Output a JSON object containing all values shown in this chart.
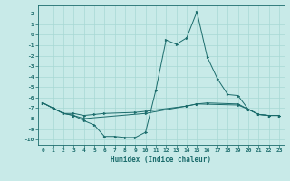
{
  "xlabel": "Humidex (Indice chaleur)",
  "bg_color": "#c8eae8",
  "grid_color": "#a8d8d4",
  "line_color": "#1a6b6b",
  "xlim": [
    -0.5,
    23.5
  ],
  "ylim": [
    -10.5,
    2.8
  ],
  "xticks": [
    0,
    1,
    2,
    3,
    4,
    5,
    6,
    7,
    8,
    9,
    10,
    11,
    12,
    13,
    14,
    15,
    16,
    17,
    18,
    19,
    20,
    21,
    22,
    23
  ],
  "yticks": [
    2,
    1,
    0,
    -1,
    -2,
    -3,
    -4,
    -5,
    -6,
    -7,
    -8,
    -9,
    -10
  ],
  "series1": [
    [
      0,
      -6.5
    ],
    [
      1,
      -7.0
    ],
    [
      2,
      -7.5
    ],
    [
      3,
      -7.7
    ],
    [
      4,
      -8.2
    ],
    [
      5,
      -8.6
    ],
    [
      6,
      -9.7
    ],
    [
      7,
      -9.7
    ],
    [
      8,
      -9.8
    ],
    [
      9,
      -9.8
    ],
    [
      10,
      -9.3
    ],
    [
      11,
      -5.3
    ],
    [
      12,
      -0.5
    ],
    [
      13,
      -0.9
    ],
    [
      14,
      -0.3
    ],
    [
      15,
      2.2
    ],
    [
      16,
      -2.1
    ],
    [
      17,
      -4.2
    ],
    [
      18,
      -5.7
    ],
    [
      19,
      -5.8
    ],
    [
      20,
      -7.1
    ],
    [
      21,
      -7.6
    ],
    [
      22,
      -7.7
    ],
    [
      23,
      -7.7
    ]
  ],
  "series2": [
    [
      0,
      -6.5
    ],
    [
      2,
      -7.5
    ],
    [
      3,
      -7.7
    ],
    [
      4,
      -8.0
    ],
    [
      10,
      -7.5
    ],
    [
      14,
      -6.8
    ],
    [
      15,
      -6.6
    ],
    [
      19,
      -6.7
    ],
    [
      20,
      -7.1
    ],
    [
      21,
      -7.6
    ],
    [
      22,
      -7.7
    ],
    [
      23,
      -7.7
    ]
  ],
  "series3": [
    [
      0,
      -6.5
    ],
    [
      1,
      -7.0
    ],
    [
      2,
      -7.5
    ],
    [
      3,
      -7.5
    ],
    [
      4,
      -7.7
    ],
    [
      5,
      -7.6
    ],
    [
      6,
      -7.5
    ],
    [
      9,
      -7.4
    ],
    [
      10,
      -7.3
    ],
    [
      14,
      -6.8
    ],
    [
      15,
      -6.6
    ],
    [
      16,
      -6.5
    ],
    [
      19,
      -6.6
    ],
    [
      20,
      -7.1
    ],
    [
      21,
      -7.6
    ],
    [
      22,
      -7.7
    ],
    [
      23,
      -7.7
    ]
  ]
}
